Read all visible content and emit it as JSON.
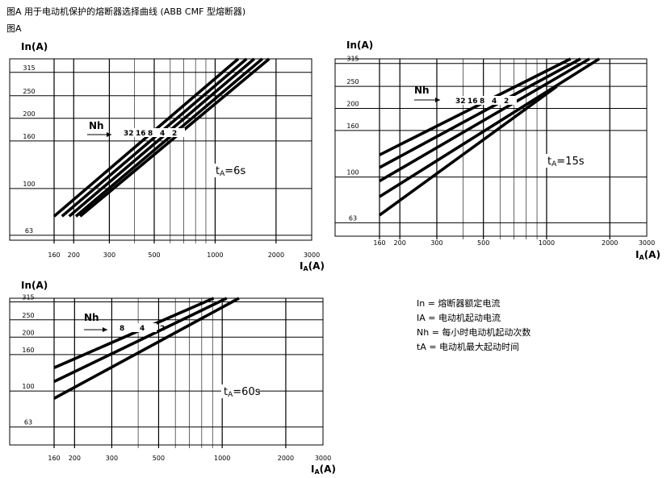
{
  "header": {
    "title": "图A  用于电动机保护的熔断器选择曲线 (ABB CMF 型熔断器)",
    "subtitle": "图A"
  },
  "legend": [
    "In = 熔断器额定电流",
    "IA = 电动机起动电流",
    "Nh = 每小时电动机起动次数",
    "tA = 电动机最大起动时间"
  ],
  "chart_data": [
    {
      "type": "line",
      "title": "",
      "ylabel": "In(A)",
      "xlabel_main": "I",
      "xlabel_sub": "A",
      "xlabel_tail": "(A)",
      "x_scale": "log",
      "y_scale": "log",
      "xlim": [
        160,
        3000
      ],
      "ylim": [
        60,
        360
      ],
      "x_ticks": [
        160,
        200,
        300,
        500,
        1000,
        2000,
        3000
      ],
      "y_ticks": [
        63,
        100,
        160,
        200,
        250,
        315
      ],
      "nh_label": "Nh",
      "t_label_main": "t",
      "t_label_sub": "A",
      "t_label_tail": "=6s",
      "series": [
        {
          "name": "32",
          "x": [
            160,
            1300
          ],
          "y": [
            76,
            360
          ]
        },
        {
          "name": "16",
          "x": [
            175,
            1430
          ],
          "y": [
            76,
            360
          ]
        },
        {
          "name": "8",
          "x": [
            190,
            1560
          ],
          "y": [
            76,
            360
          ]
        },
        {
          "name": "4",
          "x": [
            205,
            1710
          ],
          "y": [
            76,
            360
          ]
        },
        {
          "name": "2",
          "x": [
            215,
            1850
          ],
          "y": [
            76,
            360
          ]
        }
      ]
    },
    {
      "type": "line",
      "title": "",
      "ylabel": "In(A)",
      "xlabel_main": "I",
      "xlabel_sub": "A",
      "xlabel_tail": "(A)",
      "x_scale": "log",
      "y_scale": "log",
      "xlim": [
        160,
        3000
      ],
      "ylim": [
        55,
        330
      ],
      "x_ticks": [
        160,
        200,
        300,
        500,
        1000,
        2000,
        3000
      ],
      "y_ticks": [
        63,
        100,
        160,
        200,
        250,
        315
      ],
      "nh_label": "Nh",
      "t_label_main": "t",
      "t_label_sub": "A",
      "t_label_tail": "=15s",
      "series": [
        {
          "name": "32",
          "x": [
            160,
            1300
          ],
          "y": [
            125,
            330
          ]
        },
        {
          "name": "16",
          "x": [
            160,
            1450
          ],
          "y": [
            110,
            330
          ]
        },
        {
          "name": "8",
          "x": [
            160,
            1600
          ],
          "y": [
            96,
            330
          ]
        },
        {
          "name": "4",
          "x": [
            160,
            1780
          ],
          "y": [
            82,
            330
          ]
        },
        {
          "name": "2",
          "x": [
            160,
            1120
          ],
          "y": [
            68,
            250
          ]
        }
      ]
    },
    {
      "type": "line",
      "title": "",
      "ylabel": "In(A)",
      "xlabel_main": "I",
      "xlabel_sub": "A",
      "xlabel_tail": "(A)",
      "x_scale": "log",
      "y_scale": "log",
      "xlim": [
        160,
        3000
      ],
      "ylim": [
        50,
        330
      ],
      "x_ticks": [
        160,
        200,
        300,
        500,
        1000,
        2000,
        3000
      ],
      "y_ticks": [
        63,
        100,
        160,
        200,
        250,
        315
      ],
      "nh_label": "Nh",
      "t_label_main": "t",
      "t_label_sub": "A",
      "t_label_tail": "=60s",
      "series": [
        {
          "name": "8",
          "x": [
            160,
            910
          ],
          "y": [
            135,
            330
          ]
        },
        {
          "name": "4",
          "x": [
            160,
            1050
          ],
          "y": [
            113,
            330
          ]
        },
        {
          "name": "2",
          "x": [
            160,
            1200
          ],
          "y": [
            91,
            330
          ]
        }
      ]
    }
  ]
}
